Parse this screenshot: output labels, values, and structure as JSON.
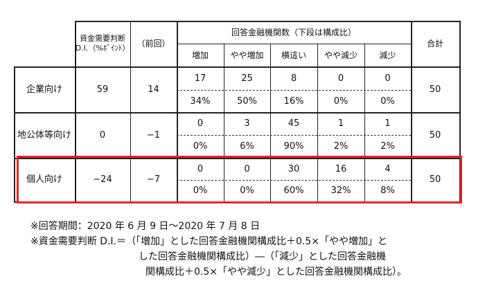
{
  "table": {
    "header": {
      "di_line1": "資金需要判断",
      "di_line2": "D.I.（%ﾎﾟｲﾝﾄ）",
      "previous": "（前回）",
      "group": "回答金融機関数（下段は構成比）",
      "total": "合計",
      "categories": [
        "増加",
        "やや増加",
        "横這い",
        "やや減少",
        "減少"
      ]
    },
    "rows": [
      {
        "label": "企業向け",
        "di": "59",
        "previous": "14",
        "counts": [
          "17",
          "25",
          "8",
          "0",
          "0"
        ],
        "ratios": [
          "34%",
          "50%",
          "16%",
          "0%",
          "0%"
        ],
        "total": "50"
      },
      {
        "label": "地公体等向け",
        "di": "0",
        "previous": "−1",
        "counts": [
          "0",
          "3",
          "45",
          "1",
          "1"
        ],
        "ratios": [
          "0%",
          "6%",
          "90%",
          "2%",
          "2%"
        ],
        "total": "50"
      },
      {
        "label": "個人向け",
        "di": "−24",
        "previous": "−7",
        "counts": [
          "0",
          "0",
          "30",
          "16",
          "4"
        ],
        "ratios": [
          "0%",
          "0%",
          "60%",
          "32%",
          "8%"
        ],
        "total": "50"
      }
    ],
    "highlight_color": "#e2261f"
  },
  "notes": {
    "line1": "※回答期間：2020 年 6 月 9 日〜2020 年 7 月 8 日",
    "line2": "※資金需要判断 D.I.＝（「増加」とした回答金融機関構成比＋0.5×「やや増加」と",
    "line3": "した回答金融機関構成比）―（「減少」とした回答金融機",
    "line4": "関構成比＋0.5×「やや減少」とした回答金融機関構成比）。"
  }
}
